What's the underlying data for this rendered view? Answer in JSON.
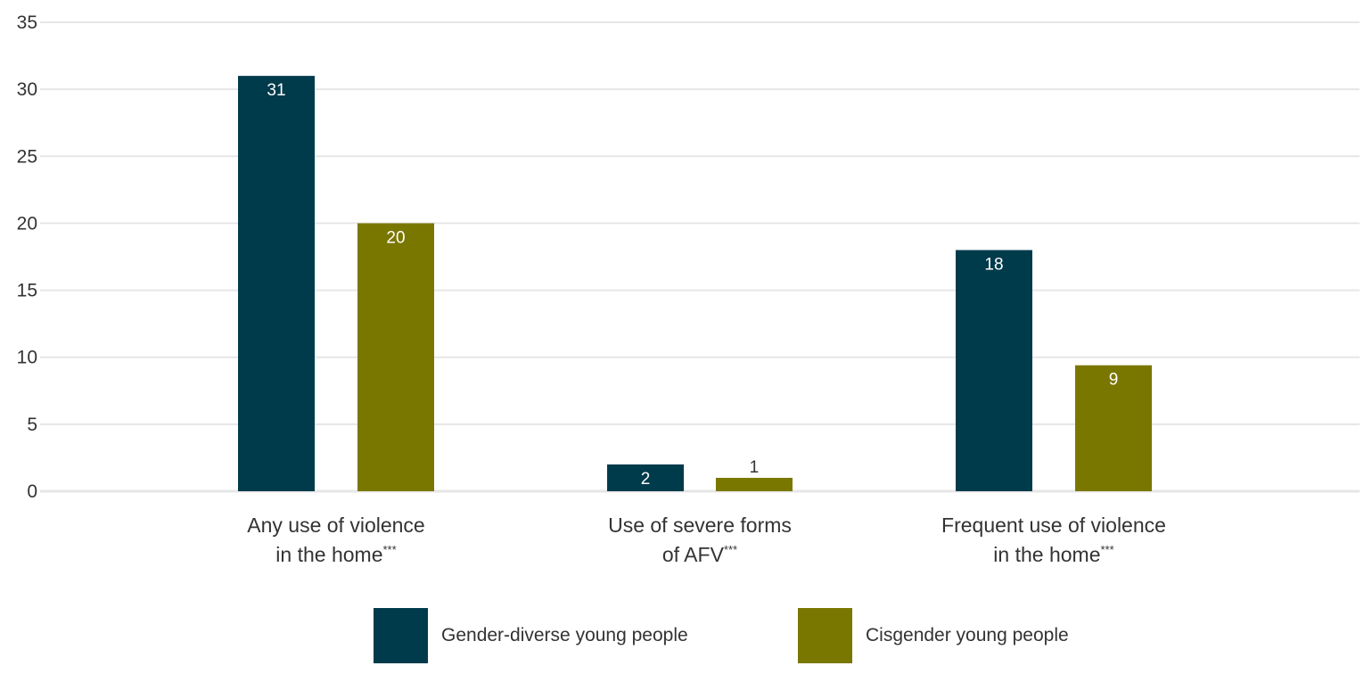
{
  "chart_data": {
    "type": "bar",
    "categories": [
      [
        "Any use of violence",
        "in the home",
        "***"
      ],
      [
        "Use of severe forms",
        "of AFV",
        "***"
      ],
      [
        "Frequent use of violence",
        "in the home",
        "***"
      ]
    ],
    "series": [
      {
        "name": "Gender-diverse young people",
        "values": [
          31,
          2,
          18
        ],
        "labels": [
          "31",
          "2",
          "18"
        ],
        "color": "#003B4C"
      },
      {
        "name": "Cisgender young people",
        "values": [
          20,
          1,
          9.4
        ],
        "labels": [
          "20",
          "1",
          "9"
        ],
        "color": "#7A7700"
      }
    ],
    "yticks": [
      0,
      5,
      10,
      15,
      20,
      25,
      30,
      35
    ],
    "ylim": [
      0,
      35
    ],
    "grid": true,
    "legend": "bottom",
    "colors": {
      "grid": "#E6E6E6",
      "axis_text": "#333333",
      "label_on_bar": "#ffffff",
      "label_above_bar": "#333333"
    }
  }
}
